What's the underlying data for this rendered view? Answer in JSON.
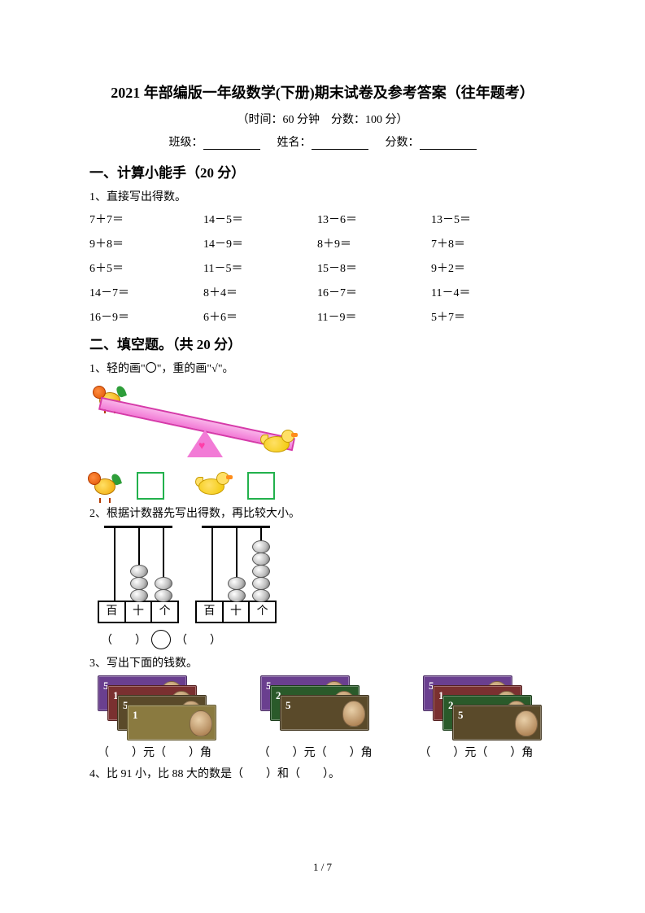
{
  "title": "2021 年部编版一年级数学(下册)期末试卷及参考答案（往年题考）",
  "subtitle_time": "（时间：60 分钟",
  "subtitle_score": "分数：100 分）",
  "info": {
    "class_label": "班级：",
    "name_label": "姓名：",
    "score_label": "分数："
  },
  "section1": {
    "heading": "一、计算小能手（20 分）",
    "q1": "1、直接写出得数。",
    "problems": [
      "7＋7＝",
      "14－5＝",
      "13－6＝",
      "13－5＝",
      "9＋8＝",
      "14－9＝",
      "8＋9＝",
      "7＋8＝",
      "6＋5＝",
      "11－5＝",
      "15－8＝",
      "9＋2＝",
      "14－7＝",
      "8＋4＝",
      "16－7＝",
      "11－4＝",
      "16－9＝",
      "6＋6＝",
      "11－9＝",
      "5＋7＝"
    ]
  },
  "section2": {
    "heading": "二、填空题。（共 20 分）",
    "q1": "1、轻的画\"〇\"，重的画\"√\"。",
    "q2": "2、根据计数器先写出得数，再比较大小。",
    "q3": "3、写出下面的钱数。",
    "q4": "4、比 91 小，比 88 大的数是（　　）和（　　）。",
    "abacus_labels": [
      "百",
      "十",
      "个"
    ],
    "abacus": [
      {
        "rods": [
          0,
          3,
          2
        ]
      },
      {
        "rods": [
          0,
          2,
          5
        ]
      }
    ],
    "compare": {
      "left": "（　　）",
      "right": "（　　）"
    },
    "money": {
      "stacks": [
        [
          {
            "color": "#6a3f8f",
            "denom": "5"
          },
          {
            "color": "#7a3030",
            "denom": "1"
          },
          {
            "color": "#5a4a2a",
            "denom": "5"
          },
          {
            "color": "#8a7a40",
            "denom": "1"
          }
        ],
        [
          {
            "color": "#6a3f8f",
            "denom": "5"
          },
          {
            "color": "#2a5a2a",
            "denom": "2"
          },
          {
            "color": "#5a4a2a",
            "denom": "5"
          }
        ],
        [
          {
            "color": "#6a3f8f",
            "denom": "5"
          },
          {
            "color": "#7a3030",
            "denom": "1"
          },
          {
            "color": "#2a5a2a",
            "denom": "2"
          },
          {
            "color": "#5a4a2a",
            "denom": "5"
          }
        ]
      ],
      "label": "（　　）元（　　）角"
    }
  },
  "footer": "1 / 7"
}
